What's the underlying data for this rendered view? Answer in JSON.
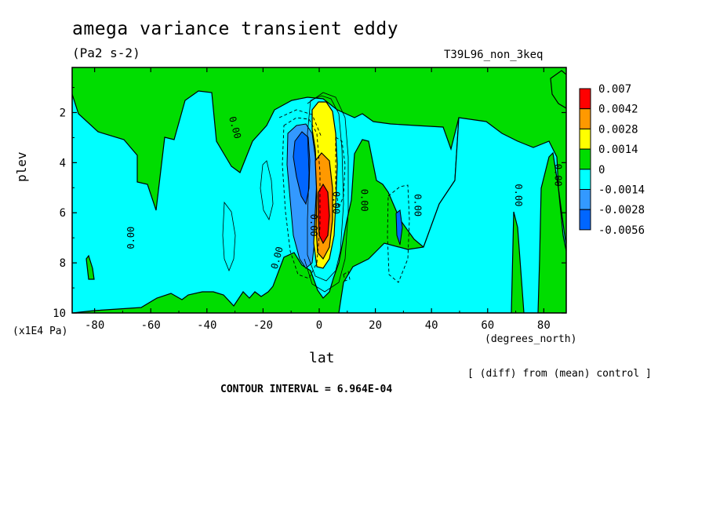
{
  "chart_data": {
    "type": "contour",
    "title": "amega variance transient eddy",
    "units": "(Pa2 s-2)",
    "run_label": "T39L96_non_3keq",
    "xlabel": "lat",
    "xunits": "(degrees_north)",
    "ylabel": "plev",
    "yunits": "(x1E4 Pa)",
    "xlim": [
      -88,
      88
    ],
    "ylim": [
      10,
      0.2
    ],
    "x_ticks": [
      -80,
      -60,
      -40,
      -20,
      0,
      20,
      40,
      60,
      80
    ],
    "x_tick_labels": [
      "-80",
      "-60",
      "-40",
      "-20",
      "0",
      "20",
      "40",
      "60",
      "80"
    ],
    "y_ticks": [
      2,
      4,
      6,
      8,
      10
    ],
    "y_tick_labels": [
      "2",
      "4",
      "6",
      "8",
      "10"
    ],
    "legend": {
      "levels": [
        "0.007",
        "0.0042",
        "0.0028",
        "0.0014",
        "0",
        "-0.0014",
        "-0.0028",
        "-0.0056"
      ],
      "colors": [
        "#ff0000",
        "#ff9900",
        "#ffff00",
        "#00dd00",
        "#00ffff",
        "#3399ff",
        "#0066ff"
      ]
    },
    "contour_labels": [
      {
        "text": "0.00",
        "lat": -30,
        "plev": 2.6,
        "rot": 75
      },
      {
        "text": "0.00",
        "lat": -67,
        "plev": 7.0,
        "rot": -90
      },
      {
        "text": "0.00",
        "lat": -15,
        "plev": 7.8,
        "rot": -75
      },
      {
        "text": "0.00",
        "lat": 16,
        "plev": 5.5,
        "rot": 90
      },
      {
        "text": "0.00",
        "lat": 35,
        "plev": 5.7,
        "rot": 90
      },
      {
        "text": "0.00",
        "lat": 71,
        "plev": 5.3,
        "rot": 90
      },
      {
        "text": "0.00",
        "lat": 85,
        "plev": 4.5,
        "rot": 90
      },
      {
        "text": "0.00",
        "lat": 6,
        "plev": 5.6,
        "rot": 90
      },
      {
        "text": "0.00",
        "lat": -2,
        "plev": 6.5,
        "rot": 90
      }
    ],
    "footer": "[ (diff) from (mean) control ]",
    "contour_interval": "CONTOUR INTERVAL = 6.964E-04"
  }
}
